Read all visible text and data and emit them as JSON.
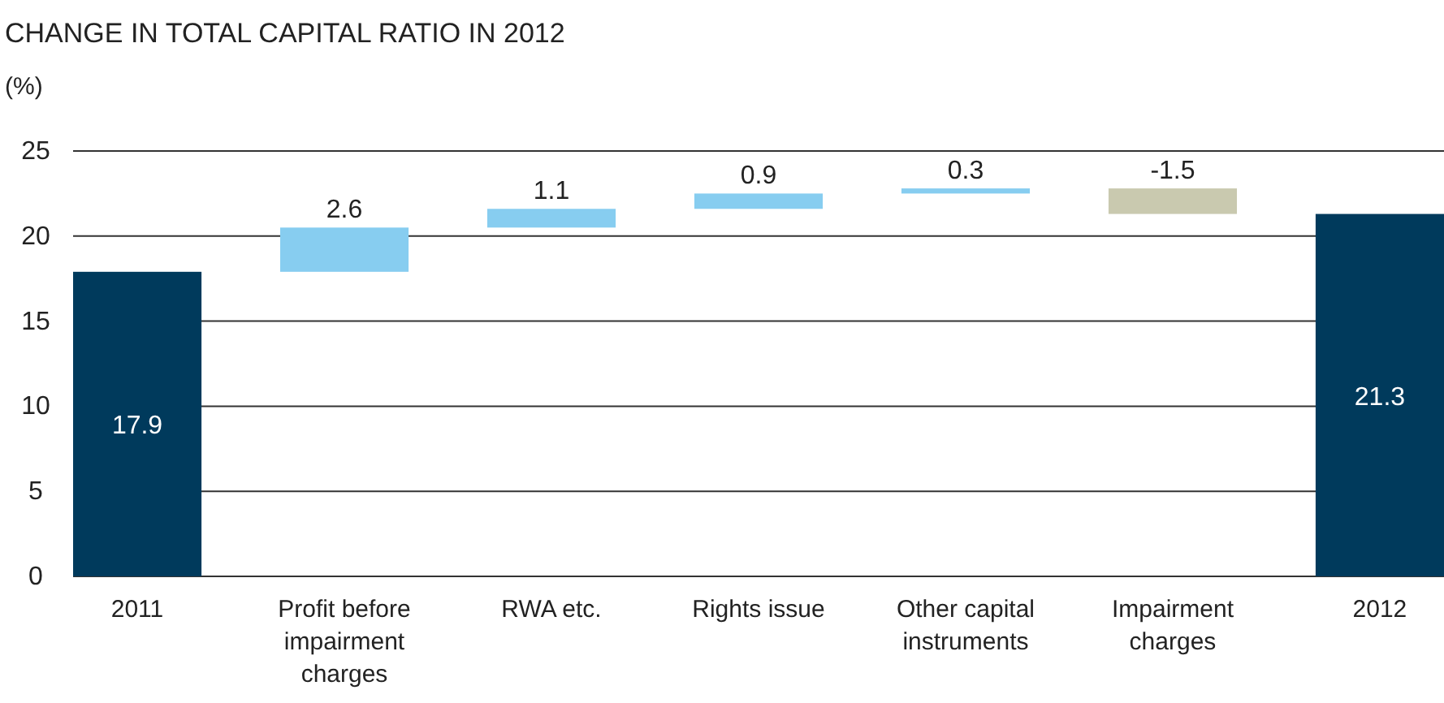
{
  "chart_data": {
    "type": "bar",
    "title": "CHANGE IN TOTAL CAPITAL RATIO IN 2012",
    "ylabel": "(%)",
    "categories": [
      "2011",
      "Profit before impairment charges",
      "RWA etc.",
      "Rights issue",
      "Other capital instruments",
      "Impairment charges",
      "2012"
    ],
    "values": [
      17.9,
      2.6,
      1.1,
      0.9,
      0.3,
      -1.5,
      21.3
    ],
    "base": [
      0,
      17.9,
      20.5,
      21.6,
      22.5,
      22.8,
      0
    ],
    "colors": [
      "#003a5c",
      "#87cdf0",
      "#87cdf0",
      "#87cdf0",
      "#87cdf0",
      "#c9c9af",
      "#003a5c"
    ],
    "ylim": [
      0,
      25
    ],
    "yticks": [
      0,
      5,
      10,
      15,
      20,
      25
    ],
    "grid": "y",
    "data_labels": true
  }
}
